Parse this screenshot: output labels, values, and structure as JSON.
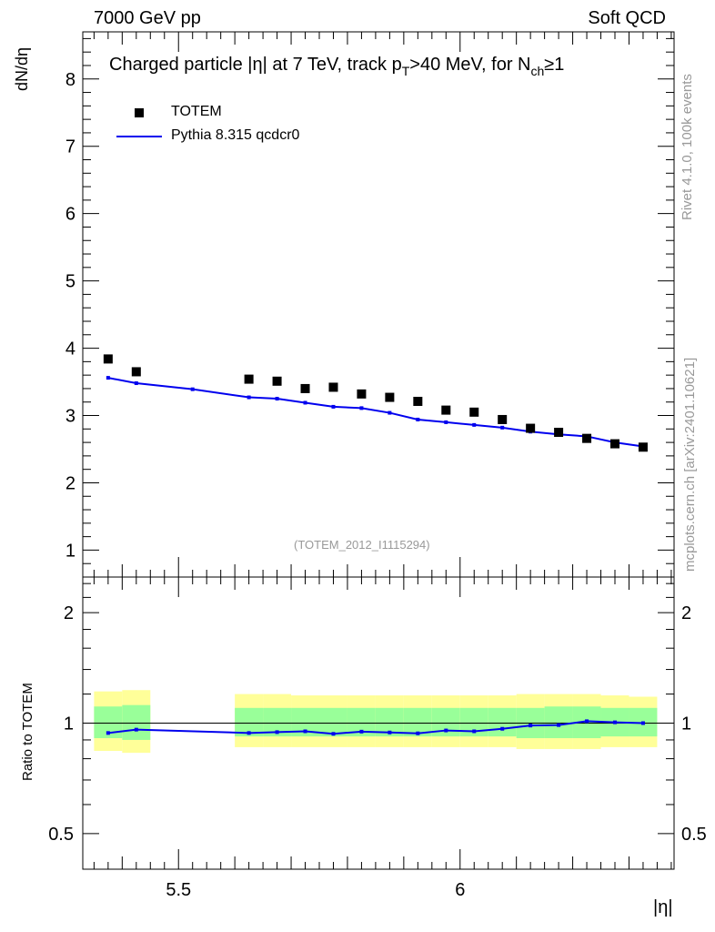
{
  "header": {
    "left": "7000 GeV pp",
    "right": "Soft QCD"
  },
  "side": {
    "top": "Rivet 4.1.0,  100k events",
    "bottom": "mcplots.cern.ch [arXiv:2401.10621]"
  },
  "title": {
    "prefix": "Charged particle |",
    "eta": "η",
    "mid": "| at 7 TeV, track p",
    "pt_sub": "T",
    "cut": ">40 MeV, for N",
    "nch_sub": "ch",
    "suffix": "≥1"
  },
  "legend": {
    "data": "TOTEM",
    "mc": "Pythia 8.315 qcdcr0"
  },
  "watermark": "(TOTEM_2012_I1115294)",
  "colors": {
    "mc": "#0000ee",
    "band_inner": "#99ff99",
    "band_outer": "#ffff99",
    "data": "#000000"
  },
  "chart_data": [
    {
      "type": "scatter",
      "panel": "main",
      "ylabel": "dN/dη",
      "ylim": [
        0.6,
        8.7
      ],
      "xlim": [
        5.33,
        6.38
      ],
      "yticks": [
        1,
        2,
        3,
        4,
        5,
        6,
        7,
        8
      ],
      "series": [
        {
          "name": "TOTEM",
          "x": [
            5.375,
            5.425,
            5.625,
            5.675,
            5.725,
            5.775,
            5.825,
            5.875,
            5.925,
            5.975,
            6.025,
            6.075,
            6.125,
            6.175,
            6.225,
            6.275,
            6.325
          ],
          "values": [
            3.84,
            3.65,
            3.54,
            3.51,
            3.4,
            3.42,
            3.32,
            3.27,
            3.21,
            3.08,
            3.05,
            2.94,
            2.81,
            2.75,
            2.66,
            2.58,
            2.53
          ]
        },
        {
          "name": "Pythia 8.315 qcdcr0",
          "x": [
            5.375,
            5.425,
            5.525,
            5.625,
            5.675,
            5.725,
            5.775,
            5.825,
            5.875,
            5.925,
            5.975,
            6.025,
            6.075,
            6.125,
            6.175,
            6.225,
            6.275,
            6.325
          ],
          "values": [
            3.56,
            3.48,
            3.39,
            3.27,
            3.25,
            3.19,
            3.13,
            3.11,
            3.04,
            2.94,
            2.9,
            2.86,
            2.82,
            2.76,
            2.72,
            2.69,
            2.6,
            2.54
          ]
        }
      ]
    },
    {
      "type": "line",
      "panel": "ratio",
      "xlabel": "|η|",
      "ylabel": "Ratio to TOTEM",
      "yscale": "log",
      "ylim": [
        0.4,
        2.5
      ],
      "xlim": [
        5.33,
        6.38
      ],
      "xticks": [
        5.5,
        6
      ],
      "yticks": [
        0.5,
        1,
        2
      ],
      "reference": 1.0,
      "bands": [
        {
          "lo": 5.35,
          "hi": 5.4,
          "inner": [
            0.91,
            1.11
          ],
          "outer": [
            0.84,
            1.22
          ]
        },
        {
          "lo": 5.4,
          "hi": 5.45,
          "inner": [
            0.9,
            1.12
          ],
          "outer": [
            0.83,
            1.23
          ]
        },
        {
          "lo": 5.6,
          "hi": 5.65,
          "inner": [
            0.92,
            1.1
          ],
          "outer": [
            0.86,
            1.2
          ]
        },
        {
          "lo": 5.65,
          "hi": 5.7,
          "inner": [
            0.92,
            1.1
          ],
          "outer": [
            0.86,
            1.2
          ]
        },
        {
          "lo": 5.7,
          "hi": 5.75,
          "inner": [
            0.92,
            1.1
          ],
          "outer": [
            0.86,
            1.19
          ]
        },
        {
          "lo": 5.75,
          "hi": 5.8,
          "inner": [
            0.92,
            1.1
          ],
          "outer": [
            0.86,
            1.19
          ]
        },
        {
          "lo": 5.8,
          "hi": 5.85,
          "inner": [
            0.92,
            1.1
          ],
          "outer": [
            0.86,
            1.19
          ]
        },
        {
          "lo": 5.85,
          "hi": 5.9,
          "inner": [
            0.92,
            1.1
          ],
          "outer": [
            0.86,
            1.19
          ]
        },
        {
          "lo": 5.9,
          "hi": 5.95,
          "inner": [
            0.92,
            1.1
          ],
          "outer": [
            0.86,
            1.19
          ]
        },
        {
          "lo": 5.95,
          "hi": 6.0,
          "inner": [
            0.92,
            1.1
          ],
          "outer": [
            0.86,
            1.19
          ]
        },
        {
          "lo": 6.0,
          "hi": 6.05,
          "inner": [
            0.92,
            1.1
          ],
          "outer": [
            0.86,
            1.19
          ]
        },
        {
          "lo": 6.05,
          "hi": 6.1,
          "inner": [
            0.92,
            1.1
          ],
          "outer": [
            0.86,
            1.19
          ]
        },
        {
          "lo": 6.1,
          "hi": 6.15,
          "inner": [
            0.91,
            1.1
          ],
          "outer": [
            0.85,
            1.2
          ]
        },
        {
          "lo": 6.15,
          "hi": 6.2,
          "inner": [
            0.91,
            1.11
          ],
          "outer": [
            0.85,
            1.2
          ]
        },
        {
          "lo": 6.2,
          "hi": 6.25,
          "inner": [
            0.91,
            1.11
          ],
          "outer": [
            0.85,
            1.2
          ]
        },
        {
          "lo": 6.25,
          "hi": 6.3,
          "inner": [
            0.92,
            1.1
          ],
          "outer": [
            0.86,
            1.19
          ]
        },
        {
          "lo": 6.3,
          "hi": 6.35,
          "inner": [
            0.92,
            1.1
          ],
          "outer": [
            0.86,
            1.18
          ]
        }
      ],
      "series": [
        {
          "name": "Pythia 8.315 qcdcr0 / TOTEM",
          "x": [
            5.375,
            5.425,
            5.625,
            5.675,
            5.725,
            5.775,
            5.825,
            5.875,
            5.925,
            5.975,
            6.025,
            6.075,
            6.125,
            6.175,
            6.225,
            6.275,
            6.325
          ],
          "values": [
            0.94,
            0.96,
            0.94,
            0.945,
            0.95,
            0.935,
            0.948,
            0.943,
            0.938,
            0.955,
            0.95,
            0.965,
            0.985,
            0.988,
            1.012,
            1.005,
            1.0
          ]
        }
      ]
    }
  ]
}
